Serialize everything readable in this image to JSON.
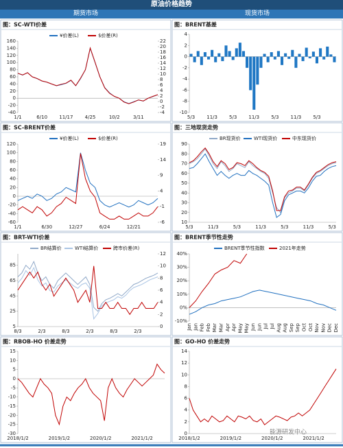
{
  "header": {
    "title": "原油价格趋势",
    "left": "期货市场",
    "right": "现货市场"
  },
  "watermark": "能源研发中心",
  "chart_data": [
    {
      "type": "line",
      "title": "图：SC-WTI价差",
      "categories": [
        "1/1",
        null,
        null,
        null,
        null,
        "6/10",
        null,
        null,
        null,
        null,
        "11/17",
        null,
        null,
        null,
        null,
        "4/25",
        null,
        null,
        null,
        null,
        "10/2",
        null,
        null,
        null,
        null,
        "3/11",
        null,
        null,
        null,
        null
      ],
      "series": [
        {
          "name": "¥价差(L)",
          "color": "#1f6fbf",
          "values": [
            70,
            65,
            72,
            60,
            55,
            48,
            45,
            40,
            35,
            38,
            42,
            50,
            35,
            55,
            80,
            140,
            100,
            60,
            30,
            15,
            5,
            0,
            -10,
            -15,
            -10,
            -5,
            -8,
            0,
            5,
            10
          ]
        },
        {
          "name": "$价差(R)",
          "color": "#c00000",
          "axis": "y2",
          "values": [
            10.3,
            9.7,
            10.5,
            9,
            8.4,
            7.5,
            7.1,
            6.4,
            5.8,
            6.3,
            6.7,
            7.8,
            5.8,
            8.5,
            11.6,
            19.5,
            14.3,
            9,
            5,
            3,
            1.9,
            1.2,
            -0.2,
            -0.8,
            -0.2,
            0.6,
            0.2,
            1.2,
            1.9,
            2.5
          ]
        }
      ],
      "ylim": [
        -40,
        160
      ],
      "yticks": [
        -40,
        -20,
        0,
        20,
        40,
        60,
        80,
        100,
        120,
        140,
        160
      ],
      "y2lim": [
        -4,
        22
      ],
      "y2ticks": [
        -4,
        -2,
        0,
        2,
        4,
        6,
        8,
        10,
        12,
        14,
        16,
        18,
        20,
        22
      ]
    },
    {
      "type": "bar",
      "title": "图：BRENT基差",
      "color": "#1f77c4",
      "categories": [
        "5/3",
        null,
        null,
        null,
        null,
        null,
        "11/3",
        null,
        null,
        null,
        null,
        null,
        "5/3",
        null,
        null,
        null,
        null,
        null,
        "11/3",
        null,
        null,
        null,
        null,
        null,
        "5/3",
        null,
        null,
        null,
        null,
        null,
        "11/3",
        null,
        null,
        null,
        null,
        null,
        "5/3",
        null,
        null,
        null,
        null,
        null
      ],
      "values": [
        0.5,
        -1,
        1,
        -1.5,
        0.8,
        -0.5,
        1.2,
        -1,
        0.6,
        -0.8,
        2,
        1,
        -0.6,
        1.5,
        2.5,
        1,
        -2,
        -6,
        -9.5,
        -5,
        -2,
        0.5,
        -1,
        0.8,
        -0.5,
        1,
        -1.5,
        0.6,
        -0.4,
        1.2,
        -2,
        0.5,
        -0.8,
        1.6,
        -0.3,
        0.9,
        -1.2,
        1.5,
        -0.5,
        1.8,
        0.4,
        -1
      ],
      "ylim": [
        -10,
        4
      ],
      "yticks": [
        -10,
        -8,
        -6,
        -4,
        -2,
        0,
        2,
        4
      ]
    },
    {
      "type": "line",
      "title": "图：SC-BRENT价差",
      "categories": [
        "1/1",
        null,
        null,
        null,
        null,
        null,
        "6/30",
        null,
        null,
        null,
        null,
        null,
        "12/27",
        null,
        null,
        null,
        null,
        null,
        "6/24",
        null,
        null,
        null,
        null,
        null,
        "12/21",
        null,
        null,
        null,
        null,
        null
      ],
      "series": [
        {
          "name": "¥价差(L)",
          "color": "#1f6fbf",
          "values": [
            -10,
            -5,
            0,
            -5,
            5,
            0,
            -10,
            -5,
            5,
            10,
            20,
            15,
            10,
            100,
            60,
            30,
            20,
            -10,
            -20,
            -25,
            -20,
            -15,
            -20,
            -25,
            -20,
            -10,
            -15,
            -20,
            -15,
            -5
          ]
        },
        {
          "name": "$价差(R)",
          "color": "#c00000",
          "axis": "y2",
          "values": [
            -2,
            -1,
            -2,
            -3,
            -1,
            -2,
            -4,
            -3,
            -1,
            0,
            2,
            1,
            0,
            16,
            8,
            4,
            2,
            -3,
            -4,
            -5,
            -5,
            -4,
            -5,
            -5,
            -4,
            -3,
            -4,
            -4,
            -3,
            -1
          ]
        }
      ],
      "ylim": [
        -60,
        120
      ],
      "yticks": [
        -60,
        -40,
        -20,
        0,
        20,
        40,
        60,
        80,
        100,
        120
      ],
      "y2lim": [
        -6,
        19
      ],
      "y2ticks": [
        -6,
        -1,
        4,
        9,
        14,
        19
      ]
    },
    {
      "type": "line",
      "title": "图：三地现货走势",
      "categories": [
        "5/3",
        null,
        null,
        null,
        null,
        null,
        "11/3",
        null,
        null,
        null,
        null,
        null,
        "5/3",
        null,
        null,
        null,
        null,
        null,
        "11/3",
        null,
        null,
        null,
        null,
        null,
        "5/3",
        null,
        null,
        null,
        null,
        null,
        "11/3",
        null,
        null,
        null,
        null,
        null,
        "5/3",
        null
      ],
      "series": [
        {
          "name": "BR现货价",
          "color": "#8fa8c8",
          "values": [
            70,
            72,
            75,
            80,
            85,
            78,
            70,
            65,
            72,
            68,
            62,
            65,
            70,
            68,
            66,
            72,
            68,
            65,
            62,
            60,
            55,
            40,
            25,
            20,
            35,
            40,
            42,
            45,
            45,
            42,
            48,
            55,
            60,
            62,
            65,
            68,
            70,
            71
          ]
        },
        {
          "name": "WTI现货价",
          "color": "#1f6fbf",
          "values": [
            65,
            66,
            70,
            75,
            80,
            72,
            65,
            58,
            62,
            58,
            55,
            58,
            60,
            58,
            58,
            63,
            60,
            58,
            55,
            52,
            48,
            30,
            15,
            18,
            32,
            38,
            40,
            42,
            42,
            40,
            45,
            52,
            57,
            58,
            62,
            65,
            67,
            68
          ]
        },
        {
          "name": "中东现货价",
          "color": "#c00000",
          "values": [
            71,
            73,
            77,
            82,
            86,
            80,
            72,
            67,
            73,
            70,
            64,
            66,
            71,
            70,
            68,
            73,
            70,
            66,
            63,
            61,
            57,
            42,
            22,
            22,
            36,
            42,
            43,
            46,
            46,
            43,
            49,
            56,
            61,
            63,
            66,
            69,
            71,
            72
          ]
        }
      ],
      "ylim": [
        10,
        90
      ],
      "yticks": [
        10,
        20,
        30,
        40,
        50,
        60,
        70,
        80,
        90
      ]
    },
    {
      "type": "line",
      "title": "图：BRT-WTI价差",
      "categories": [
        "8/3",
        null,
        null,
        null,
        null,
        null,
        "2/3",
        null,
        null,
        null,
        null,
        null,
        "8/3",
        null,
        null,
        null,
        null,
        null,
        "2/3",
        null,
        null,
        null,
        null,
        null,
        "8/3",
        null,
        null,
        null,
        null,
        null,
        "2/3",
        null,
        null,
        null,
        null,
        null
      ],
      "series": [
        {
          "name": "BR结算价",
          "color": "#8fa8c8",
          "values": [
            70,
            75,
            85,
            80,
            90,
            75,
            65,
            70,
            60,
            55,
            65,
            70,
            75,
            70,
            65,
            60,
            65,
            70,
            60,
            30,
            25,
            35,
            40,
            42,
            45,
            48,
            45,
            50,
            55,
            60,
            62,
            65,
            68,
            70,
            72,
            75
          ]
        },
        {
          "name": "WTI结算价",
          "color": "#a9c4e4",
          "values": [
            62,
            68,
            78,
            72,
            82,
            66,
            58,
            62,
            52,
            50,
            58,
            62,
            66,
            62,
            58,
            55,
            60,
            62,
            55,
            15,
            22,
            32,
            36,
            38,
            40,
            44,
            42,
            46,
            52,
            56,
            58,
            60,
            63,
            66,
            68,
            70
          ]
        },
        {
          "name": "跨市价差(R)",
          "color": "#c00000",
          "axis": "y2",
          "values": [
            6,
            7,
            8,
            9,
            8,
            9,
            7,
            6,
            7,
            5,
            6,
            7,
            8,
            7,
            6,
            4,
            5,
            6,
            4,
            10,
            3,
            3,
            4,
            3,
            3,
            4,
            3,
            3,
            2,
            3,
            3,
            4,
            3,
            3,
            3,
            4
          ]
        }
      ],
      "ylim": [
        5,
        100
      ],
      "yticks": [
        5,
        25,
        45,
        65,
        85
      ],
      "y2lim": [
        0,
        12
      ],
      "y2ticks": [
        0,
        2,
        4,
        6,
        8,
        10,
        12
      ]
    },
    {
      "type": "line",
      "title": "图：BRENT季节性走势",
      "categories": [
        "Jan",
        "Jan",
        "Feb",
        "Feb",
        "Mar",
        "Mar",
        "Apr",
        "Apr",
        "May",
        "May",
        "Jun",
        "Jun",
        "Jul",
        "Jul",
        "Aug",
        "Aug",
        "Sep",
        "Sep",
        "Oct",
        "Oct",
        "Nov",
        "Nov",
        "Dec",
        "Dec"
      ],
      "series": [
        {
          "name": "BRENT季节性指数",
          "color": "#1f6fbf",
          "values": [
            -5,
            -3,
            0,
            2,
            3,
            5,
            6,
            7,
            8,
            10,
            12,
            13,
            12,
            11,
            10,
            9,
            8,
            7,
            6,
            5,
            3,
            2,
            0,
            -2
          ]
        },
        {
          "name": "2021年走势",
          "color": "#c00000",
          "values": [
            0,
            5,
            12,
            18,
            25,
            28,
            30,
            35,
            33,
            40,
            null,
            null,
            null,
            null,
            null,
            null,
            null,
            null,
            null,
            null,
            null,
            null,
            null,
            null
          ]
        }
      ],
      "ylim": [
        -10,
        40
      ],
      "yticks": [
        {
          "value": -10,
          "label": "-10%"
        },
        {
          "value": 0,
          "label": "0%"
        },
        {
          "value": 10,
          "label": "10%"
        },
        {
          "value": 20,
          "label": "20%"
        },
        {
          "value": 30,
          "label": "30%"
        },
        {
          "value": 40,
          "label": "40%"
        }
      ]
    },
    {
      "type": "line",
      "title": "图：RBOB-HO 价差走势",
      "color": "#c00000",
      "categories": [
        "2018/1/2",
        null,
        null,
        null,
        null,
        null,
        null,
        null,
        null,
        null,
        null,
        "2019/1/2",
        null,
        null,
        null,
        null,
        null,
        null,
        null,
        null,
        null,
        null,
        "2020/1/2",
        null,
        null,
        null,
        null,
        null,
        null,
        null,
        null,
        null,
        null,
        "2021/1/2",
        null,
        null,
        null,
        null,
        null,
        null
      ],
      "values": [
        0,
        -2,
        -5,
        -8,
        -10,
        -5,
        0,
        -3,
        -5,
        -8,
        -20,
        -25,
        -15,
        -10,
        -12,
        -8,
        -5,
        -3,
        0,
        -5,
        -8,
        -10,
        -12,
        -23,
        -5,
        0,
        -5,
        -8,
        -10,
        -6,
        -3,
        0,
        -2,
        -4,
        -2,
        0,
        2,
        8,
        5,
        3
      ],
      "ylim": [
        -30,
        15
      ],
      "yticks": [
        -30,
        -25,
        -20,
        -15,
        -10,
        -5,
        0,
        5,
        10,
        15
      ]
    },
    {
      "type": "line",
      "title": "图：GO-HO 价差走势",
      "color": "#c00000",
      "categories": [
        "2018/1/2",
        null,
        null,
        null,
        null,
        null,
        null,
        null,
        null,
        null,
        null,
        "2019/1/2",
        null,
        null,
        null,
        null,
        null,
        null,
        null,
        null,
        null,
        null,
        "2020/1/2",
        null,
        null,
        null,
        null,
        null,
        null,
        null,
        null,
        null,
        null,
        "2021/1/2",
        null,
        null,
        null,
        null,
        null,
        null
      ],
      "values": [
        6,
        4,
        3,
        2,
        2.5,
        2,
        3,
        2.5,
        2,
        2.2,
        3,
        2.5,
        2,
        3,
        2.8,
        2.5,
        3,
        2.2,
        2,
        2.5,
        1.5,
        2,
        2.5,
        3,
        2.8,
        2.5,
        2.2,
        2.8,
        3,
        3.5,
        3,
        3.5,
        4,
        5,
        6,
        7,
        8,
        9,
        10,
        11
      ],
      "ylim": [
        0,
        14
      ],
      "yticks": [
        0,
        2,
        4,
        6,
        8,
        10,
        12,
        14
      ]
    }
  ]
}
